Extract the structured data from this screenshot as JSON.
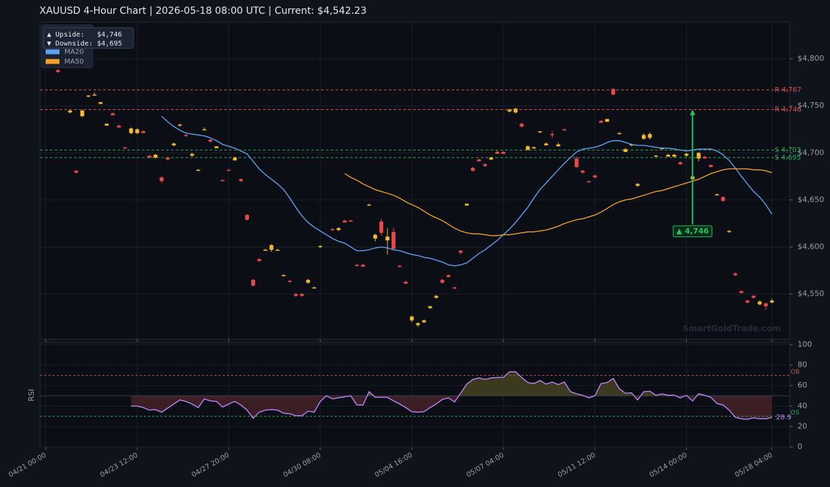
{
  "chart_data": [
    {
      "type": "candlestick",
      "title": "XAUUSD  4-Hour Chart  |  2026-05-18 08:00 UTC  |  Current: $4,542.23",
      "categories": [
        "04/21 00:00",
        null,
        null,
        null,
        null,
        null,
        null,
        null,
        null,
        null,
        null,
        null,
        null,
        null,
        null,
        "04/23 12:00",
        null,
        null,
        null,
        null,
        null,
        null,
        null,
        null,
        null,
        null,
        null,
        null,
        null,
        null,
        "04/27 20:00",
        null,
        null,
        null,
        null,
        null,
        null,
        null,
        null,
        null,
        null,
        null,
        null,
        null,
        null,
        "04/30 08:00",
        null,
        null,
        null,
        null,
        null,
        null,
        null,
        null,
        null,
        null,
        null,
        null,
        null,
        null,
        "05/04 16:00",
        null,
        null,
        null,
        null,
        null,
        null,
        null,
        null,
        null,
        null,
        null,
        null,
        null,
        null,
        "05/07 04:00",
        null,
        null,
        null,
        null,
        null,
        null,
        null,
        null,
        null,
        null,
        null,
        null,
        null,
        null,
        "05/11 12:00",
        null,
        null,
        null,
        null,
        null,
        null,
        null,
        null,
        null,
        null,
        null,
        null,
        null,
        null,
        "05/14 00:00",
        null,
        null,
        null,
        null,
        null,
        null,
        null,
        null,
        null,
        null,
        null,
        null,
        null,
        "05/18 04:00"
      ],
      "ohlc": [
        null,
        null,
        [
          4788,
          4789,
          4785,
          4786
        ],
        null,
        [
          4743,
          4746,
          4742,
          4745
        ],
        [
          4681,
          4682,
          4678,
          4679
        ],
        [
          4739,
          4746,
          4738,
          4745
        ],
        [
          4760,
          4761,
          4759,
          4761
        ],
        [
          4761,
          4764,
          4761,
          4762
        ],
        [
          4752,
          4754,
          4752,
          4754
        ],
        [
          4729,
          4731,
          4729,
          4731
        ],
        [
          4742,
          4743,
          4740,
          4740
        ],
        [
          4729,
          4730,
          4727,
          4727
        ],
        [
          4706,
          4706,
          4704,
          4705
        ],
        [
          4721,
          4727,
          4720,
          4726
        ],
        [
          4721,
          4726,
          4720,
          4725
        ],
        [
          4723,
          4724,
          4721,
          4721
        ],
        [
          4697,
          4698,
          4694,
          4695
        ],
        [
          4695,
          4699,
          4694,
          4698
        ],
        [
          4674,
          4675,
          4668,
          4670
        ],
        [
          4695,
          4696,
          4692,
          4693
        ],
        [
          4708,
          4711,
          4707,
          4710
        ],
        [
          4729,
          4731,
          4728,
          4730
        ],
        [
          4719,
          4720,
          4717,
          4718
        ],
        [
          4697,
          4700,
          4696,
          4699
        ],
        [
          4682,
          4683,
          4681,
          4682
        ],
        [
          4725,
          4727,
          4724,
          4725
        ],
        [
          4714,
          4715,
          4711,
          4712
        ],
        [
          4705,
          4707,
          4705,
          4707
        ],
        [
          4671,
          4672,
          4670,
          4670
        ],
        [
          4682,
          4683,
          4681,
          4681
        ],
        [
          4692,
          4696,
          4692,
          4695
        ],
        [
          4672,
          4673,
          4669,
          4670
        ],
        [
          4634,
          4635,
          4628,
          4629
        ],
        [
          4565,
          4566,
          4558,
          4559
        ],
        [
          4587,
          4588,
          4584,
          4585
        ],
        [
          4597,
          4598,
          4596,
          4597
        ],
        [
          4597,
          4603,
          4595,
          4602
        ],
        [
          4596,
          4598,
          4596,
          4597
        ],
        [
          4569,
          4571,
          4569,
          4570
        ],
        [
          4564,
          4565,
          4562,
          4563
        ],
        [
          4550,
          4551,
          4547,
          4548
        ],
        [
          4550,
          4551,
          4547,
          4548
        ],
        [
          4562,
          4566,
          4561,
          4565
        ],
        [
          4556,
          4558,
          4556,
          4557
        ],
        [
          4600,
          4602,
          4599,
          4601
        ],
        null,
        [
          4619,
          4620,
          4617,
          4618
        ],
        [
          4618,
          4621,
          4617,
          4620
        ],
        [
          4628,
          4629,
          4626,
          4626
        ],
        [
          4628,
          4629,
          4627,
          4627
        ],
        [
          4581,
          4582,
          4579,
          4580
        ],
        [
          4581,
          4582,
          4579,
          4579
        ],
        [
          4644,
          4646,
          4644,
          4645
        ],
        [
          4609,
          4614,
          4606,
          4613
        ],
        [
          4627,
          4630,
          4612,
          4615
        ],
        [
          4607,
          4620,
          4592,
          4611
        ],
        [
          4616,
          4620,
          4597,
          4598
        ],
        [
          4580,
          4581,
          4578,
          4579
        ],
        [
          4563,
          4564,
          4561,
          4561
        ],
        [
          4522,
          4527,
          4520,
          4526
        ],
        [
          4517,
          4520,
          4515,
          4519
        ],
        [
          4520,
          4523,
          4519,
          4522
        ],
        [
          4535,
          4537,
          4534,
          4537
        ],
        [
          4546,
          4549,
          4545,
          4548
        ],
        [
          4565,
          4566,
          4561,
          4562
        ],
        [
          4570,
          4571,
          4568,
          4568
        ],
        [
          4557,
          4558,
          4555,
          4556
        ],
        [
          4596,
          4597,
          4592,
          4594
        ],
        [
          4644,
          4646,
          4644,
          4646
        ],
        [
          4684,
          4685,
          4680,
          4681
        ],
        [
          4693,
          4694,
          4691,
          4691
        ],
        [
          4688,
          4689,
          4685,
          4686
        ],
        [
          4693,
          4696,
          4692,
          4695
        ],
        [
          4701,
          4703,
          4699,
          4699
        ],
        [
          4701,
          4702,
          4699,
          4699
        ],
        [
          4744,
          4747,
          4743,
          4746
        ],
        [
          4743,
          4748,
          4742,
          4747
        ],
        [
          4731,
          4732,
          4727,
          4728
        ],
        [
          4703,
          4708,
          4703,
          4707
        ],
        [
          4705,
          4707,
          4704,
          4706
        ],
        [
          4722,
          4723,
          4721,
          4723
        ],
        [
          4708,
          4711,
          4708,
          4710
        ],
        [
          4720,
          4723,
          4716,
          4719
        ],
        [
          4707,
          4711,
          4707,
          4709
        ],
        [
          4725,
          4726,
          4724,
          4724
        ],
        null,
        [
          4694,
          4696,
          4684,
          4685
        ],
        [
          4681,
          4682,
          4678,
          4679
        ],
        [
          4670,
          4670,
          4668,
          4669
        ],
        [
          4676,
          4677,
          4673,
          4674
        ],
        [
          4734,
          4735,
          4732,
          4732
        ],
        [
          4733,
          4736,
          4733,
          4736
        ],
        [
          4768,
          4769,
          4761,
          4762
        ],
        [
          4721,
          4722,
          4720,
          4721
        ],
        [
          4701,
          4705,
          4701,
          4704
        ],
        [
          4708,
          4710,
          4707,
          4709
        ],
        [
          4665,
          4668,
          4664,
          4667
        ],
        [
          4715,
          4721,
          4714,
          4719
        ],
        [
          4716,
          4722,
          4714,
          4720
        ],
        [
          4696,
          4698,
          4696,
          4697
        ],
        [
          4704,
          4706,
          4704,
          4705
        ],
        [
          4696,
          4699,
          4696,
          4698
        ],
        [
          4696,
          4699,
          4695,
          4698
        ],
        [
          4690,
          4691,
          4687,
          4688
        ],
        [
          4697,
          4700,
          4696,
          4699
        ],
        [
          4672,
          4676,
          4671,
          4675
        ],
        [
          4694,
          4701,
          4691,
          4700
        ],
        [
          4696,
          4697,
          4694,
          4694
        ],
        [
          4687,
          4688,
          4685,
          4685
        ],
        [
          4655,
          4657,
          4655,
          4656
        ],
        [
          4653,
          4654,
          4648,
          4649
        ],
        [
          4616,
          4618,
          4615,
          4617
        ],
        [
          4572,
          4573,
          4569,
          4570
        ],
        [
          4553,
          4554,
          4551,
          4551
        ],
        [
          4543,
          4544,
          4540,
          4541
        ],
        [
          4548,
          4549,
          4545,
          4546
        ],
        [
          4539,
          4543,
          4538,
          4542
        ],
        [
          4540,
          4541,
          4533,
          4537
        ],
        [
          4541,
          4545,
          4540,
          4543
        ]
      ],
      "up_color": "#f5b82e",
      "down_color": "#e84a4a",
      "series": [
        {
          "name": "MA20",
          "color": "#5ea3f0",
          "values": [
            null,
            null,
            null,
            null,
            null,
            null,
            null,
            null,
            null,
            null,
            null,
            null,
            null,
            null,
            null,
            null,
            null,
            null,
            null,
            4739,
            4733,
            4728,
            4724,
            4721,
            4720,
            4719,
            4718,
            4716,
            4713,
            4709,
            4707,
            4705,
            4702,
            4699,
            4691,
            4683,
            4677,
            4672,
            4667,
            4661,
            4652,
            4642,
            4633,
            4626,
            4621,
            4617,
            4613,
            4609,
            4606,
            4604,
            4600,
            4596,
            4596,
            4597,
            4599,
            4600,
            4599,
            4597,
            4596,
            4594,
            4592,
            4591,
            4589,
            4588,
            4586,
            4584,
            4581,
            4580,
            4581,
            4583,
            4588,
            4593,
            4597,
            4602,
            4607,
            4613,
            4619,
            4626,
            4634,
            4642,
            4652,
            4661,
            4668,
            4675,
            4682,
            4689,
            4695,
            4701,
            4704,
            4705,
            4706,
            4708,
            4711,
            4713,
            4713,
            4711,
            4709,
            4708,
            4708,
            4707,
            4706,
            4705,
            4705,
            4704,
            4703,
            4702,
            4703,
            4704,
            4704,
            4704,
            4702,
            4698,
            4692,
            4684,
            4675,
            4667,
            4659,
            4653,
            4645,
            4635
          ]
        },
        {
          "name": "MA50",
          "color": "#f0a02a",
          "values": [
            null,
            null,
            null,
            null,
            null,
            null,
            null,
            null,
            null,
            null,
            null,
            null,
            null,
            null,
            null,
            null,
            null,
            null,
            null,
            null,
            null,
            null,
            null,
            null,
            null,
            null,
            null,
            null,
            null,
            null,
            null,
            null,
            null,
            null,
            null,
            null,
            null,
            null,
            null,
            null,
            null,
            null,
            null,
            null,
            null,
            null,
            null,
            null,
            null,
            4678,
            4674,
            4671,
            4667,
            4664,
            4661,
            4659,
            4657,
            4655,
            4652,
            4648,
            4645,
            4642,
            4638,
            4634,
            4631,
            4628,
            4624,
            4620,
            4617,
            4615,
            4614,
            4614,
            4613,
            4612,
            4612,
            4613,
            4613,
            4614,
            4615,
            4616,
            4616,
            4617,
            4618,
            4620,
            4622,
            4625,
            4627,
            4629,
            4630,
            4632,
            4634,
            4637,
            4641,
            4645,
            4648,
            4650,
            4651,
            4653,
            4655,
            4657,
            4659,
            4660,
            4662,
            4664,
            4666,
            4668,
            4670,
            4672,
            4675,
            4678,
            4680,
            4682,
            4683,
            4683,
            4683,
            4683,
            4682,
            4682,
            4681,
            4679
          ]
        }
      ],
      "legend": "upper left",
      "ylim": [
        4502,
        4839
      ],
      "yticks": [
        {
          "value": 4550,
          "label": "$4,550"
        },
        {
          "value": 4600,
          "label": "$4,600"
        },
        {
          "value": 4650,
          "label": "$4,650"
        },
        {
          "value": 4700,
          "label": "$4,700"
        },
        {
          "value": 4750,
          "label": "$4,750"
        },
        {
          "value": 4800,
          "label": "$4,800"
        }
      ],
      "grid": true,
      "levels": [
        {
          "label": "R 4,767",
          "value": 4767,
          "color": "#e05252"
        },
        {
          "label": "R 4,746",
          "value": 4746,
          "color": "#e05252"
        },
        {
          "label": "S 4,703",
          "value": 4703,
          "color": "#2eaa5c"
        },
        {
          "label": "S 4,695",
          "value": 4695,
          "color": "#2eaa5c"
        }
      ],
      "info": [
        "▲ Upside:   $4,746",
        "▼ Downside: $4,695"
      ],
      "annotation": {
        "text": "▲ 4,746",
        "x": 106,
        "from": 4624,
        "to": 4746,
        "color": "#22c55e"
      },
      "watermark": "SmartGoldTrade.com"
    },
    {
      "type": "line",
      "ylabel": "RSI",
      "color": "#c084fc",
      "values": [
        null,
        null,
        null,
        null,
        null,
        null,
        null,
        null,
        null,
        null,
        null,
        null,
        null,
        null,
        40,
        40,
        38.5,
        36,
        36.5,
        34,
        38,
        42,
        46,
        44.5,
        42,
        38.5,
        47,
        45,
        44.5,
        39,
        42,
        44.5,
        41,
        36,
        28,
        34,
        36,
        36.5,
        36,
        33,
        32.5,
        30.5,
        30.5,
        35,
        34,
        44.5,
        50,
        47,
        48,
        49,
        50,
        41,
        41,
        54,
        48.5,
        48.5,
        48.5,
        45,
        42,
        38.5,
        34.5,
        34,
        34.5,
        38.5,
        42,
        46.5,
        48,
        44,
        52.5,
        61.5,
        66,
        67.5,
        66,
        67.5,
        68,
        68,
        73.5,
        73.5,
        68,
        63,
        62,
        65,
        61.5,
        63.5,
        61,
        63.5,
        54,
        52,
        50.5,
        48,
        50,
        62,
        63,
        67,
        57,
        52.5,
        53,
        46,
        54,
        54.5,
        50.5,
        52,
        50.5,
        50.5,
        48,
        50.5,
        45,
        52,
        50.5,
        48.5,
        42.5,
        41,
        36,
        29,
        27.5,
        27,
        28.5,
        27.5,
        27.5,
        28.9
      ],
      "value_label": "28.9",
      "ylim": [
        0,
        100
      ],
      "yticks": [
        0,
        20,
        40,
        60,
        80,
        100
      ],
      "grid": true,
      "midline": 50,
      "fill_above": "#3b3a1e",
      "fill_below": "#3b1f24",
      "levels": [
        {
          "label": "OB",
          "value": 70,
          "color": "#c0504d"
        },
        {
          "label": "OS",
          "value": 30,
          "color": "#2eaa5c"
        }
      ]
    }
  ]
}
